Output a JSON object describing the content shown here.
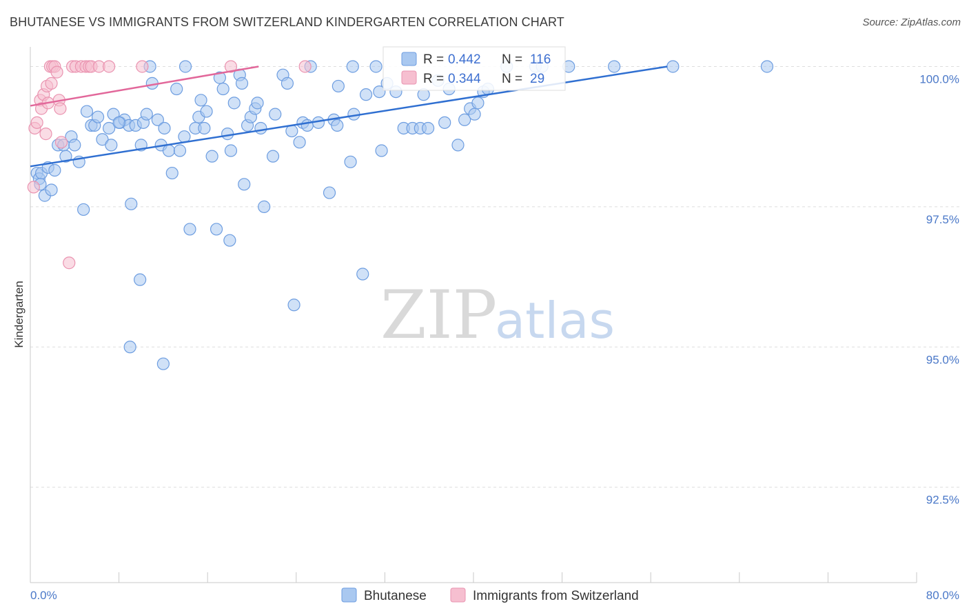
{
  "header": {
    "title": "BHUTANESE VS IMMIGRANTS FROM SWITZERLAND KINDERGARTEN CORRELATION CHART",
    "source": "Source: ZipAtlas.com"
  },
  "watermark": {
    "zip": "ZIP",
    "atlas": "atlas"
  },
  "colors": {
    "blue_fill": "#a9c8f0",
    "blue_stroke": "#6d9de0",
    "blue_line": "#2f6fd1",
    "pink_fill": "#f6bfd0",
    "pink_stroke": "#ea93b0",
    "pink_line": "#e2679a",
    "grid": "#dddddd",
    "tick_label": "#4a78c8"
  },
  "legend": {
    "rows": [
      {
        "r_label": "R = ",
        "r_value": "0.442",
        "n_label": "N = ",
        "n_value": "116"
      },
      {
        "r_label": "R = ",
        "r_value": "0.344",
        "n_label": "N = ",
        "n_value": "29"
      }
    ]
  },
  "chart_data": {
    "type": "scatter",
    "title": "BHUTANESE VS IMMIGRANTS FROM SWITZERLAND KINDERGARTEN CORRELATION CHART",
    "xlabel": "",
    "ylabel": "Kindergarten",
    "xlim": [
      0,
      80
    ],
    "ylim": [
      90.8,
      100.35
    ],
    "x_tick_labels": [
      "0.0%",
      "80.0%"
    ],
    "y_ticks": [
      92.5,
      95.0,
      97.5,
      100.0
    ],
    "y_tick_labels": [
      "92.5%",
      "95.0%",
      "97.5%",
      "100.0%"
    ],
    "grid": true,
    "legend_position": "top-center",
    "series": [
      {
        "name": "Bhutanese",
        "color": "#a9c8f0",
        "R": 0.442,
        "N": 116,
        "trend": {
          "x": [
            0,
            57.5
          ],
          "y": [
            98.22,
            100.0
          ]
        },
        "points": [
          [
            0.6,
            98.1
          ],
          [
            0.8,
            98.0
          ],
          [
            1.0,
            98.1
          ],
          [
            0.9,
            97.9
          ],
          [
            1.3,
            97.7
          ],
          [
            1.6,
            98.2
          ],
          [
            1.9,
            97.8
          ],
          [
            2.2,
            98.15
          ],
          [
            2.5,
            98.6
          ],
          [
            3.0,
            98.6
          ],
          [
            3.2,
            98.4
          ],
          [
            3.7,
            98.75
          ],
          [
            4.0,
            98.6
          ],
          [
            4.4,
            98.3
          ],
          [
            4.8,
            97.45
          ],
          [
            5.1,
            99.2
          ],
          [
            5.5,
            98.95
          ],
          [
            5.8,
            98.95
          ],
          [
            6.1,
            99.1
          ],
          [
            6.5,
            98.7
          ],
          [
            7.1,
            98.9
          ],
          [
            7.3,
            98.6
          ],
          [
            7.5,
            99.15
          ],
          [
            8.1,
            99.0
          ],
          [
            8.5,
            99.05
          ],
          [
            8.9,
            98.95
          ],
          [
            9.1,
            97.55
          ],
          [
            9.5,
            98.95
          ],
          [
            9.9,
            96.2
          ],
          [
            10.2,
            99.0
          ],
          [
            10.5,
            99.15
          ],
          [
            10.8,
            100.0
          ],
          [
            11.0,
            99.7
          ],
          [
            11.5,
            99.05
          ],
          [
            11.8,
            98.6
          ],
          [
            12.1,
            98.9
          ],
          [
            12.5,
            98.5
          ],
          [
            12.8,
            98.1
          ],
          [
            13.2,
            99.6
          ],
          [
            13.5,
            98.5
          ],
          [
            13.9,
            98.75
          ],
          [
            14.0,
            100.0
          ],
          [
            14.4,
            97.1
          ],
          [
            14.9,
            98.9
          ],
          [
            15.2,
            99.1
          ],
          [
            15.4,
            99.4
          ],
          [
            15.7,
            98.9
          ],
          [
            15.9,
            99.2
          ],
          [
            16.4,
            98.4
          ],
          [
            16.8,
            97.1
          ],
          [
            17.1,
            99.8
          ],
          [
            17.4,
            99.6
          ],
          [
            17.8,
            98.8
          ],
          [
            18.1,
            98.5
          ],
          [
            18.4,
            99.35
          ],
          [
            18.9,
            99.85
          ],
          [
            19.1,
            99.7
          ],
          [
            19.3,
            97.9
          ],
          [
            19.6,
            98.95
          ],
          [
            19.9,
            99.1
          ],
          [
            20.3,
            99.25
          ],
          [
            20.5,
            99.35
          ],
          [
            20.8,
            98.9
          ],
          [
            21.1,
            97.5
          ],
          [
            21.9,
            98.4
          ],
          [
            22.1,
            99.15
          ],
          [
            22.8,
            99.85
          ],
          [
            23.2,
            99.7
          ],
          [
            23.6,
            98.85
          ],
          [
            23.8,
            95.75
          ],
          [
            24.3,
            98.65
          ],
          [
            24.6,
            99.0
          ],
          [
            25.3,
            100.0
          ],
          [
            27.0,
            97.75
          ],
          [
            27.4,
            99.05
          ],
          [
            27.7,
            98.95
          ],
          [
            27.8,
            99.65
          ],
          [
            28.9,
            98.3
          ],
          [
            29.1,
            100.0
          ],
          [
            29.2,
            99.15
          ],
          [
            30.0,
            96.3
          ],
          [
            30.3,
            99.5
          ],
          [
            31.2,
            100.0
          ],
          [
            31.5,
            99.55
          ],
          [
            31.7,
            98.5
          ],
          [
            32.2,
            99.7
          ],
          [
            33.0,
            99.55
          ],
          [
            33.7,
            98.9
          ],
          [
            34.5,
            98.9
          ],
          [
            35.2,
            98.9
          ],
          [
            35.5,
            99.5
          ],
          [
            35.9,
            98.9
          ],
          [
            37.4,
            99.0
          ],
          [
            37.8,
            99.6
          ],
          [
            38.6,
            98.6
          ],
          [
            39.2,
            99.05
          ],
          [
            39.7,
            99.25
          ],
          [
            40.1,
            99.15
          ],
          [
            40.4,
            99.35
          ],
          [
            40.9,
            99.55
          ],
          [
            41.3,
            99.6
          ],
          [
            43.0,
            100.0
          ],
          [
            45.6,
            100.0
          ],
          [
            46.2,
            100.0
          ],
          [
            48.6,
            100.0
          ],
          [
            52.7,
            100.0
          ],
          [
            58.0,
            100.0
          ],
          [
            66.5,
            100.0
          ],
          [
            25.0,
            98.95
          ],
          [
            18.0,
            96.9
          ],
          [
            9.0,
            95.0
          ],
          [
            12.0,
            94.7
          ],
          [
            36.8,
            99.75
          ],
          [
            8.0,
            99.0
          ],
          [
            10.0,
            98.6
          ],
          [
            26.0,
            99.0
          ]
        ]
      },
      {
        "name": "Immigrants from Switzerland",
        "color": "#f6bfd0",
        "R": 0.344,
        "N": 29,
        "trend": {
          "x": [
            0,
            20.6
          ],
          "y": [
            99.3,
            100.0
          ]
        },
        "points": [
          [
            0.3,
            97.85
          ],
          [
            0.4,
            98.9
          ],
          [
            0.6,
            99.0
          ],
          [
            0.9,
            99.4
          ],
          [
            1.0,
            99.25
          ],
          [
            1.2,
            99.5
          ],
          [
            1.4,
            98.8
          ],
          [
            1.5,
            99.65
          ],
          [
            1.6,
            99.35
          ],
          [
            1.8,
            100.0
          ],
          [
            1.9,
            99.7
          ],
          [
            2.0,
            100.0
          ],
          [
            2.2,
            100.0
          ],
          [
            2.4,
            99.9
          ],
          [
            2.6,
            99.4
          ],
          [
            2.7,
            99.25
          ],
          [
            2.8,
            98.65
          ],
          [
            3.5,
            96.5
          ],
          [
            3.8,
            100.0
          ],
          [
            4.1,
            100.0
          ],
          [
            4.6,
            100.0
          ],
          [
            5.0,
            100.0
          ],
          [
            5.3,
            100.0
          ],
          [
            5.5,
            100.0
          ],
          [
            6.2,
            100.0
          ],
          [
            7.1,
            100.0
          ],
          [
            10.1,
            100.0
          ],
          [
            18.1,
            100.0
          ],
          [
            24.8,
            100.0
          ]
        ]
      }
    ]
  },
  "bottom_legend": {
    "items": [
      {
        "label": "Bhutanese"
      },
      {
        "label": "Immigrants from Switzerland"
      }
    ]
  }
}
